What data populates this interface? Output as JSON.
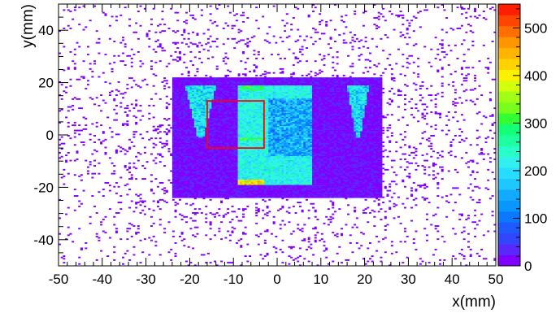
{
  "chart_data": {
    "type": "heatmap",
    "title": "",
    "xlabel": "x(mm)",
    "ylabel": "y(mm)",
    "xlim": [
      -50,
      50
    ],
    "ylim": [
      -50,
      50
    ],
    "x_ticks": [
      -50,
      -40,
      -30,
      -20,
      -10,
      0,
      10,
      20,
      30,
      40,
      50
    ],
    "y_ticks": [
      -40,
      -20,
      0,
      20,
      40
    ],
    "x_tick_labels": [
      "-50",
      "-40",
      "-30",
      "-20",
      "-10",
      "0",
      "10",
      "20",
      "30",
      "40",
      "50"
    ],
    "y_tick_labels": [
      "-40",
      "-20",
      "0",
      "20",
      "40"
    ],
    "colorbar": {
      "range": [
        0,
        550
      ],
      "ticks": [
        0,
        100,
        200,
        300,
        400,
        500
      ],
      "tick_labels": [
        "0",
        "100",
        "200",
        "300",
        "400",
        "500"
      ],
      "palette": [
        "#7F00FF",
        "#5A28FF",
        "#3246FF",
        "#1E5AFF",
        "#0A78FF",
        "#0A96FF",
        "#10AAFF",
        "#1EC8FF",
        "#28DCFF",
        "#32F0F0",
        "#28FFC8",
        "#1EFFA0",
        "#14FF78",
        "#32FF32",
        "#78FF1E",
        "#A0FF14",
        "#D2FF0A",
        "#FFF000",
        "#FFD200",
        "#FFB400",
        "#FF9600",
        "#FF6E00",
        "#FF4600",
        "#FF1E00"
      ]
    },
    "regions": [
      {
        "name": "dense-rectangle",
        "x": [
          -9,
          8
        ],
        "y": [
          -19,
          19
        ],
        "value": 230
      },
      {
        "name": "low-density-core",
        "x": [
          -2,
          8
        ],
        "y": [
          -8,
          14
        ],
        "value": 140
      },
      {
        "name": "outer-halo",
        "x": [
          -24,
          24
        ],
        "y": [
          -24,
          22
        ],
        "value": 20
      },
      {
        "name": "left-triangle",
        "x": [
          -21,
          -14
        ],
        "y": [
          -1,
          19
        ],
        "value": 220
      },
      {
        "name": "right-triangle",
        "x": [
          16,
          21
        ],
        "y": [
          -1,
          19
        ],
        "value": 220
      },
      {
        "name": "top-band",
        "x": [
          -9,
          -3
        ],
        "y": [
          17,
          19
        ],
        "value": 300
      },
      {
        "name": "bottom-band",
        "x": [
          -9,
          -3
        ],
        "y": [
          -19,
          -17
        ],
        "value": 420
      },
      {
        "name": "middle-band",
        "x": [
          -9,
          -3
        ],
        "y": [
          -2,
          -1
        ],
        "value": 330
      }
    ],
    "selection_box": {
      "x": [
        -16,
        -3
      ],
      "y": [
        -5,
        13
      ],
      "color": "#FF0000"
    }
  }
}
